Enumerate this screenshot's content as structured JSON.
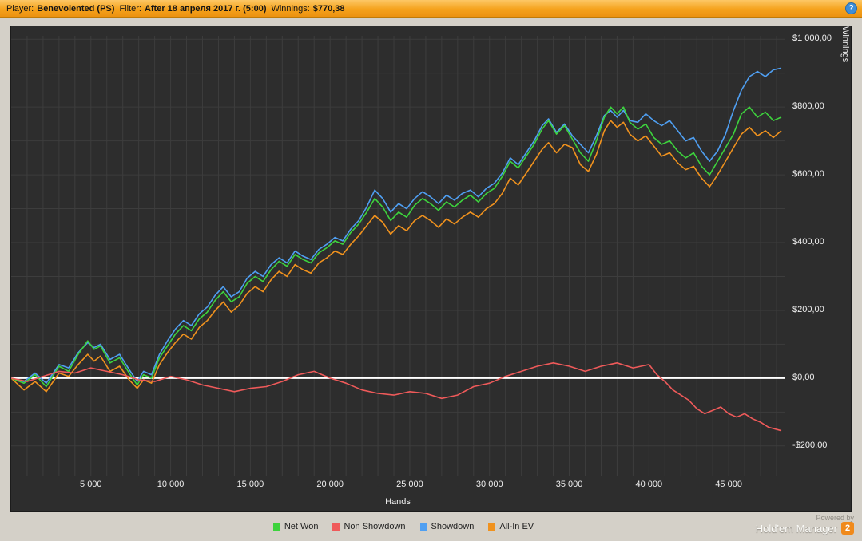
{
  "topbar": {
    "player_label": "Player:",
    "player_value": "Benevolented (PS)",
    "filter_label": "Filter:",
    "filter_value": "After 18 апреля 2017 г. (5:00)",
    "winnings_label": "Winnings:",
    "winnings_value": "$770,38",
    "info_icon_glyph": "?"
  },
  "chart_data": {
    "type": "line",
    "title": "",
    "xlabel": "Hands",
    "ylabel": "Winnings",
    "xlim": [
      0,
      48500
    ],
    "ylim": [
      -290,
      1010
    ],
    "x_ticks": [
      5000,
      10000,
      15000,
      20000,
      25000,
      30000,
      35000,
      40000,
      45000
    ],
    "x_tick_labels": [
      "5 000",
      "10 000",
      "15 000",
      "20 000",
      "25 000",
      "30 000",
      "35 000",
      "40 000",
      "45 000"
    ],
    "y_ticks": [
      1000,
      800,
      600,
      400,
      200,
      0,
      -200
    ],
    "y_tick_labels": [
      "$1 000,00",
      "$800,00",
      "$600,00",
      "$400,00",
      "$200,00",
      "$0,00",
      "-$200,00"
    ],
    "grid": {
      "x_step": 1000,
      "y_step": 100,
      "color": "#3d3d3d"
    },
    "zero_line": {
      "value": 0,
      "color": "#ffffff"
    },
    "background": "#2d2d2d",
    "legend_position": "bottom",
    "draw_order": [
      3,
      2,
      0,
      1
    ],
    "series": [
      {
        "name": "Net Won",
        "color": "#3dd33d",
        "x": [
          0,
          800,
          1500,
          2200,
          3000,
          3600,
          4200,
          4800,
          5200,
          5600,
          6200,
          6800,
          7400,
          7900,
          8300,
          8800,
          9300,
          9800,
          10300,
          10800,
          11300,
          11800,
          12300,
          12800,
          13300,
          13800,
          14300,
          14800,
          15300,
          15800,
          16300,
          16800,
          17300,
          17800,
          18300,
          18800,
          19300,
          19800,
          20300,
          20800,
          21300,
          21800,
          22300,
          22800,
          23300,
          23800,
          24300,
          24800,
          25300,
          25800,
          26300,
          26800,
          27300,
          27800,
          28300,
          28800,
          29300,
          29800,
          30300,
          30800,
          31300,
          31800,
          32300,
          32800,
          33300,
          33700,
          34200,
          34700,
          35200,
          35700,
          36200,
          36700,
          37200,
          37600,
          38000,
          38400,
          38800,
          39300,
          39800,
          40300,
          40800,
          41300,
          41800,
          42300,
          42800,
          43300,
          43800,
          44300,
          44800,
          45300,
          45800,
          46300,
          46800,
          47300,
          47800,
          48300
        ],
        "y": [
          0,
          -15,
          10,
          -25,
          35,
          20,
          70,
          110,
          85,
          95,
          45,
          60,
          15,
          -20,
          10,
          0,
          60,
          95,
          130,
          155,
          140,
          175,
          195,
          230,
          255,
          225,
          240,
          280,
          300,
          285,
          320,
          345,
          330,
          365,
          350,
          340,
          370,
          385,
          405,
          395,
          430,
          455,
          490,
          530,
          505,
          465,
          490,
          475,
          510,
          530,
          515,
          495,
          520,
          505,
          525,
          540,
          520,
          545,
          560,
          595,
          640,
          620,
          655,
          690,
          735,
          760,
          720,
          745,
          705,
          665,
          640,
          700,
          770,
          800,
          780,
          800,
          755,
          735,
          750,
          710,
          690,
          700,
          670,
          650,
          665,
          625,
          600,
          640,
          680,
          720,
          780,
          800,
          770,
          785,
          760,
          770
        ]
      },
      {
        "name": "Non Showdown",
        "color": "#ef5a5a",
        "x": [
          0,
          1000,
          2000,
          3000,
          4000,
          5000,
          6000,
          7000,
          8000,
          9000,
          10000,
          11000,
          12000,
          13000,
          14000,
          15000,
          16000,
          17000,
          18000,
          19000,
          20000,
          21000,
          22000,
          23000,
          24000,
          25000,
          26000,
          27000,
          28000,
          29000,
          30000,
          31000,
          32000,
          33000,
          34000,
          35000,
          36000,
          37000,
          38000,
          39000,
          40000,
          40500,
          41000,
          41500,
          42000,
          42500,
          43000,
          43500,
          44000,
          44500,
          45000,
          45500,
          46000,
          46500,
          47000,
          47500,
          48300
        ],
        "y": [
          0,
          -10,
          5,
          20,
          15,
          30,
          20,
          10,
          -5,
          -10,
          5,
          -5,
          -20,
          -30,
          -40,
          -30,
          -25,
          -10,
          10,
          20,
          0,
          -15,
          -35,
          -45,
          -50,
          -40,
          -45,
          -60,
          -50,
          -25,
          -15,
          5,
          20,
          35,
          45,
          35,
          20,
          35,
          45,
          30,
          40,
          10,
          -10,
          -35,
          -50,
          -65,
          -90,
          -105,
          -95,
          -85,
          -105,
          -115,
          -105,
          -120,
          -130,
          -145,
          -155
        ]
      },
      {
        "name": "Showdown",
        "color": "#4f9ff2",
        "x": [
          0,
          800,
          1500,
          2200,
          3000,
          3600,
          4200,
          4800,
          5200,
          5600,
          6200,
          6800,
          7400,
          7900,
          8300,
          8800,
          9300,
          9800,
          10300,
          10800,
          11300,
          11800,
          12300,
          12800,
          13300,
          13800,
          14300,
          14800,
          15300,
          15800,
          16300,
          16800,
          17300,
          17800,
          18300,
          18800,
          19300,
          19800,
          20300,
          20800,
          21300,
          21800,
          22300,
          22800,
          23300,
          23800,
          24300,
          24800,
          25300,
          25800,
          26300,
          26800,
          27300,
          27800,
          28300,
          28800,
          29300,
          29800,
          30300,
          30800,
          31300,
          31800,
          32300,
          32800,
          33300,
          33700,
          34200,
          34700,
          35200,
          35700,
          36200,
          36700,
          37200,
          37600,
          38000,
          38400,
          38800,
          39300,
          39800,
          40300,
          40800,
          41300,
          41800,
          42300,
          42800,
          43300,
          43800,
          44300,
          44800,
          45300,
          45800,
          46300,
          46800,
          47300,
          47800,
          48300
        ],
        "y": [
          0,
          -10,
          15,
          -15,
          40,
          30,
          75,
          105,
          90,
          100,
          55,
          70,
          25,
          -10,
          20,
          10,
          70,
          110,
          145,
          170,
          155,
          190,
          210,
          245,
          270,
          240,
          255,
          295,
          315,
          300,
          335,
          355,
          340,
          375,
          360,
          350,
          380,
          395,
          415,
          405,
          440,
          465,
          505,
          555,
          530,
          490,
          515,
          500,
          530,
          550,
          535,
          515,
          540,
          525,
          545,
          555,
          535,
          560,
          575,
          605,
          650,
          630,
          665,
          700,
          745,
          765,
          725,
          750,
          715,
          690,
          665,
          715,
          775,
          790,
          770,
          790,
          760,
          755,
          780,
          760,
          745,
          760,
          730,
          700,
          710,
          670,
          640,
          670,
          720,
          790,
          850,
          890,
          905,
          890,
          910,
          915
        ]
      },
      {
        "name": "All-In EV",
        "color": "#f0921e",
        "x": [
          0,
          800,
          1500,
          2200,
          3000,
          3600,
          4200,
          4800,
          5200,
          5600,
          6200,
          6800,
          7400,
          7900,
          8300,
          8800,
          9300,
          9800,
          10300,
          10800,
          11300,
          11800,
          12300,
          12800,
          13300,
          13800,
          14300,
          14800,
          15300,
          15800,
          16300,
          16800,
          17300,
          17800,
          18300,
          18800,
          19300,
          19800,
          20300,
          20800,
          21300,
          21800,
          22300,
          22800,
          23300,
          23800,
          24300,
          24800,
          25300,
          25800,
          26300,
          26800,
          27300,
          27800,
          28300,
          28800,
          29300,
          29800,
          30300,
          30800,
          31300,
          31800,
          32300,
          32800,
          33300,
          33700,
          34200,
          34700,
          35200,
          35700,
          36200,
          36700,
          37200,
          37600,
          38000,
          38400,
          38800,
          39300,
          39800,
          40300,
          40800,
          41300,
          41800,
          42300,
          42800,
          43300,
          43800,
          44300,
          44800,
          45300,
          45800,
          46300,
          46800,
          47300,
          47800,
          48300
        ],
        "y": [
          0,
          -35,
          -10,
          -40,
          15,
          5,
          40,
          70,
          50,
          65,
          20,
          35,
          -5,
          -30,
          -5,
          -15,
          40,
          75,
          105,
          130,
          115,
          150,
          170,
          200,
          225,
          195,
          215,
          250,
          270,
          255,
          290,
          315,
          300,
          335,
          320,
          310,
          340,
          355,
          375,
          365,
          395,
          420,
          450,
          480,
          460,
          425,
          450,
          435,
          465,
          480,
          465,
          445,
          470,
          455,
          475,
          490,
          475,
          500,
          515,
          545,
          590,
          570,
          605,
          640,
          675,
          695,
          665,
          690,
          680,
          630,
          610,
          660,
          730,
          760,
          740,
          755,
          720,
          700,
          715,
          685,
          655,
          665,
          635,
          615,
          625,
          590,
          565,
          600,
          640,
          680,
          720,
          740,
          715,
          730,
          710,
          730
        ]
      }
    ]
  },
  "footer": {
    "powered_by": "Powered by",
    "brand": "Hold'em Manager",
    "badge": "2"
  }
}
